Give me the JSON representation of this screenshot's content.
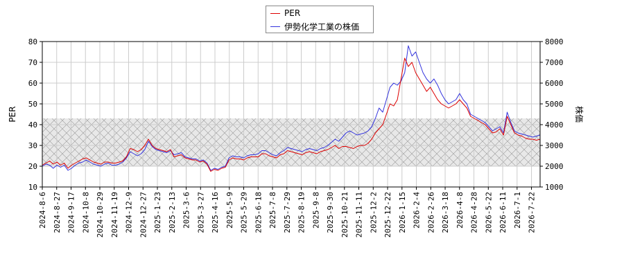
{
  "chart_data": {
    "type": "line",
    "xlabel": "",
    "ylabel_left": "PER",
    "ylabel_right": "株価",
    "ylim_left": [
      10,
      80
    ],
    "ylim_right": [
      1000,
      8000
    ],
    "yticks_left": [
      10,
      20,
      30,
      40,
      50,
      60,
      70,
      80
    ],
    "yticks_right": [
      1000,
      2000,
      3000,
      4000,
      5000,
      6000,
      7000,
      8000
    ],
    "x_tick_labels": [
      "2024-8-6",
      "2024-8-27",
      "2024-9-17",
      "2024-10-8",
      "2024-10-29",
      "2024-11-19",
      "2024-12-9",
      "2024-12-27",
      "2025-1-23",
      "2025-2-13",
      "2025-3-6",
      "2025-3-27",
      "2025-4-16",
      "2025-5-9",
      "2025-5-29",
      "2025-6-18",
      "2025-7-8",
      "2025-7-29",
      "2025-8-19",
      "2025-9-8",
      "2025-9-30",
      "2025-10-21",
      "2025-11-11",
      "2025-12-2",
      "2025-12-22",
      "2026-1-15",
      "2026-2-4",
      "2026-2-26",
      "2026-3-18",
      "2026-4-8",
      "2026-4-28",
      "2026-5-22",
      "2026-6-11",
      "2026-7-1",
      "2026-7-22"
    ],
    "grid": true,
    "shaded_band_per": [
      20,
      43
    ],
    "legend_position": "top-center",
    "series": [
      {
        "name": "PER",
        "axis": "left",
        "color": "#dd0000",
        "values": [
          20.5,
          21.5,
          22.5,
          21,
          22,
          20.5,
          21.5,
          19,
          20.5,
          21.5,
          22.5,
          23.5,
          24,
          23,
          22,
          21.5,
          21,
          22,
          22,
          21.5,
          21.5,
          22,
          22.5,
          24.5,
          28.5,
          28,
          27,
          28,
          30,
          33,
          30,
          28.5,
          28,
          27.5,
          27,
          28,
          24.5,
          25,
          25.5,
          24,
          23.5,
          23,
          23,
          22,
          22.5,
          21,
          17.5,
          18.5,
          18,
          19,
          19.5,
          23,
          24,
          23.5,
          23.5,
          23,
          24,
          24.5,
          24.5,
          24.5,
          26,
          26,
          25,
          24.5,
          24,
          25.5,
          26,
          27.5,
          27,
          26.5,
          26,
          25.5,
          26.5,
          27,
          26.5,
          26,
          27,
          27.5,
          28,
          29,
          30,
          28.5,
          29.5,
          29.5,
          29,
          28.5,
          29.5,
          30,
          30,
          31,
          33,
          36,
          38,
          40,
          45,
          50,
          49,
          52,
          62,
          72,
          68,
          70,
          65,
          62,
          59,
          56,
          58,
          55,
          52,
          50,
          49,
          48,
          49,
          50,
          52,
          50,
          48,
          44,
          43,
          42,
          41,
          40,
          38,
          36,
          36.5,
          38,
          35,
          44,
          40,
          36,
          35,
          34.5,
          33.5,
          33,
          33,
          32.5,
          33
        ]
      },
      {
        "name": "伊勢化学工業の株価",
        "axis": "right",
        "color": "#3333dd",
        "values": [
          2000,
          2100,
          2050,
          1900,
          2050,
          1950,
          2050,
          1800,
          1900,
          2050,
          2150,
          2200,
          2300,
          2200,
          2100,
          2050,
          2000,
          2100,
          2150,
          2050,
          2050,
          2100,
          2200,
          2400,
          2700,
          2600,
          2500,
          2600,
          2800,
          3200,
          2950,
          2800,
          2750,
          2700,
          2650,
          2750,
          2550,
          2600,
          2650,
          2450,
          2400,
          2350,
          2350,
          2250,
          2300,
          2150,
          1800,
          1900,
          1850,
          1950,
          2000,
          2400,
          2500,
          2450,
          2450,
          2400,
          2500,
          2550,
          2550,
          2600,
          2750,
          2750,
          2650,
          2550,
          2500,
          2650,
          2750,
          2900,
          2850,
          2800,
          2750,
          2700,
          2800,
          2850,
          2800,
          2750,
          2850,
          2900,
          3000,
          3150,
          3300,
          3200,
          3400,
          3600,
          3700,
          3600,
          3500,
          3550,
          3600,
          3700,
          3900,
          4300,
          4800,
          4600,
          5200,
          5800,
          6000,
          5900,
          6100,
          6500,
          7800,
          7300,
          7500,
          7000,
          6500,
          6200,
          6000,
          6200,
          5900,
          5500,
          5200,
          5000,
          5100,
          5200,
          5500,
          5200,
          5000,
          4500,
          4400,
          4300,
          4200,
          4100,
          3900,
          3700,
          3800,
          3900,
          3600,
          4600,
          4100,
          3700,
          3600,
          3550,
          3500,
          3450,
          3400,
          3450,
          3500
        ]
      }
    ]
  }
}
